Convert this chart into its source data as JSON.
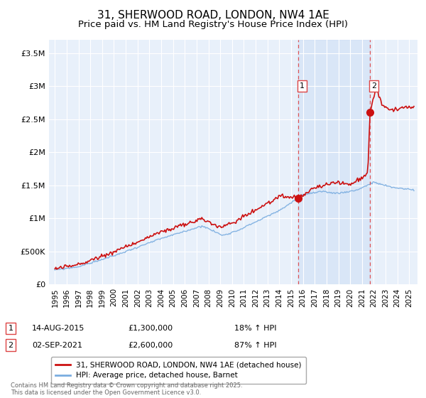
{
  "title": "31, SHERWOOD ROAD, LONDON, NW4 1AE",
  "subtitle": "Price paid vs. HM Land Registry's House Price Index (HPI)",
  "title_fontsize": 11,
  "subtitle_fontsize": 9.5,
  "background_color": "#ffffff",
  "plot_bg_color": "#dce9f5",
  "plot_bg_color2": "#e8f0fa",
  "grid_color": "#ffffff",
  "ylabel_ticks": [
    "£0",
    "£500K",
    "£1M",
    "£1.5M",
    "£2M",
    "£2.5M",
    "£3M",
    "£3.5M"
  ],
  "ytick_values": [
    0,
    500000,
    1000000,
    1500000,
    2000000,
    2500000,
    3000000,
    3500000
  ],
  "ylim": [
    0,
    3700000
  ],
  "xlim_start": 1994.5,
  "xlim_end": 2025.7,
  "sale1_x": 2015.617,
  "sale1_y": 1300000,
  "sale1_label": "1",
  "sale2_x": 2021.671,
  "sale2_y": 2600000,
  "sale2_label": "2",
  "sale1_date": "14-AUG-2015",
  "sale1_price": "£1,300,000",
  "sale1_hpi": "18% ↑ HPI",
  "sale2_date": "02-SEP-2021",
  "sale2_price": "£2,600,000",
  "sale2_hpi": "87% ↑ HPI",
  "legend_line1": "31, SHERWOOD ROAD, LONDON, NW4 1AE (detached house)",
  "legend_line2": "HPI: Average price, detached house, Barnet",
  "footer": "Contains HM Land Registry data © Crown copyright and database right 2025.\nThis data is licensed under the Open Government Licence v3.0.",
  "hpi_color": "#7aade0",
  "price_color": "#cc1111",
  "dashed_color": "#dd4444",
  "shade_color": "#ccddf5"
}
